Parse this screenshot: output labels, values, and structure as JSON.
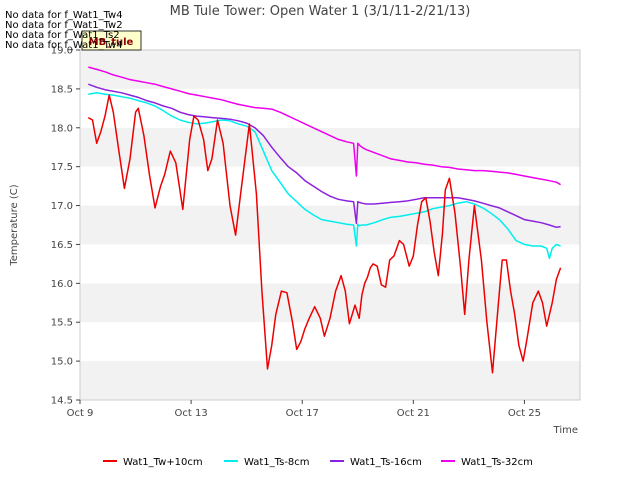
{
  "chart_data": {
    "type": "line",
    "title": "MB Tule Tower: Open Water 1 (3/1/11-2/21/13)",
    "xlabel": "Time",
    "ylabel": "Temperature (C)",
    "xlim": [
      9,
      27
    ],
    "ylim": [
      14.5,
      19.0
    ],
    "x_ticks": [
      9,
      13,
      17,
      21,
      25
    ],
    "x_tick_labels": [
      "Oct 9",
      "Oct 13",
      "Oct 17",
      "Oct 21",
      "Oct 25"
    ],
    "y_ticks": [
      14.5,
      15.0,
      15.5,
      16.0,
      16.5,
      17.0,
      17.5,
      18.0,
      18.5,
      19.0
    ],
    "y_tick_labels": [
      "14.5",
      "15.0",
      "15.5",
      "16.0",
      "16.5",
      "17.0",
      "17.5",
      "18.0",
      "18.5",
      "19.0"
    ],
    "grid": "horizontal bands",
    "legend_position": "bottom",
    "no_data_messages": [
      "No data for f_Wat1_Tw4",
      "No data for f_Wat1_Tw2",
      "No data for f_Wat1_Ts2",
      "No data for f_Wat1_Tw4"
    ],
    "badge_label": "MB_tule",
    "series": [
      {
        "name": "Wat1_Tw+10cm",
        "color": "#ee0000",
        "x": [
          9.3,
          9.45,
          9.6,
          9.75,
          9.9,
          10.05,
          10.2,
          10.4,
          10.6,
          10.8,
          11.0,
          11.1,
          11.3,
          11.5,
          11.7,
          11.9,
          12.05,
          12.25,
          12.45,
          12.7,
          12.95,
          13.1,
          13.25,
          13.45,
          13.6,
          13.75,
          13.95,
          14.15,
          14.4,
          14.6,
          14.8,
          15.1,
          15.35,
          15.55,
          15.75,
          15.9,
          16.05,
          16.25,
          16.45,
          16.65,
          16.8,
          16.95,
          17.1,
          17.25,
          17.45,
          17.65,
          17.8,
          18.0,
          18.2,
          18.4,
          18.55,
          18.7,
          18.9,
          19.05,
          19.15,
          19.25,
          19.35,
          19.45,
          19.55,
          19.7,
          19.85,
          20.0,
          20.15,
          20.3,
          20.5,
          20.65,
          20.85,
          21.0,
          21.15,
          21.3,
          21.45,
          21.6,
          21.75,
          21.9,
          22.05,
          22.15,
          22.3,
          22.5,
          22.7,
          22.85,
          23.0,
          23.2,
          23.45,
          23.65,
          23.85,
          24.05,
          24.2,
          24.35,
          24.5,
          24.65,
          24.8,
          24.95,
          25.1,
          25.3,
          25.5,
          25.65,
          25.8,
          26.0,
          26.15,
          26.3
        ],
        "y": [
          18.13,
          18.1,
          17.8,
          17.95,
          18.15,
          18.42,
          18.2,
          17.7,
          17.22,
          17.6,
          18.2,
          18.25,
          17.9,
          17.4,
          16.97,
          17.25,
          17.4,
          17.7,
          17.55,
          16.95,
          17.85,
          18.15,
          18.1,
          17.85,
          17.45,
          17.6,
          18.1,
          17.8,
          17.0,
          16.62,
          17.2,
          18.05,
          17.15,
          15.9,
          14.9,
          15.2,
          15.6,
          15.9,
          15.88,
          15.5,
          15.15,
          15.25,
          15.42,
          15.55,
          15.7,
          15.55,
          15.32,
          15.55,
          15.9,
          16.1,
          15.9,
          15.48,
          15.72,
          15.55,
          15.85,
          16.0,
          16.08,
          16.2,
          16.25,
          16.22,
          15.98,
          15.95,
          16.3,
          16.35,
          16.55,
          16.5,
          16.22,
          16.35,
          16.75,
          17.05,
          17.1,
          16.8,
          16.4,
          16.1,
          16.65,
          17.2,
          17.35,
          16.9,
          16.2,
          15.6,
          16.3,
          17.0,
          16.3,
          15.5,
          14.85,
          15.7,
          16.3,
          16.3,
          15.9,
          15.6,
          15.2,
          15.0,
          15.3,
          15.75,
          15.9,
          15.75,
          15.45,
          15.75,
          16.05,
          16.2
        ]
      },
      {
        "name": "Wat1_Ts-8cm",
        "color": "#00eeee",
        "x": [
          9.3,
          9.6,
          9.9,
          10.2,
          10.5,
          10.8,
          11.1,
          11.4,
          11.7,
          12.0,
          12.3,
          12.6,
          12.9,
          13.2,
          13.5,
          13.8,
          14.1,
          14.4,
          14.7,
          15.0,
          15.3,
          15.6,
          15.9,
          16.2,
          16.5,
          16.8,
          17.1,
          17.4,
          17.7,
          18.0,
          18.3,
          18.6,
          18.85,
          18.95,
          19.0,
          19.05,
          19.15,
          19.3,
          19.6,
          19.9,
          20.2,
          20.5,
          20.8,
          21.1,
          21.4,
          21.7,
          22.0,
          22.3,
          22.6,
          22.9,
          23.2,
          23.5,
          23.8,
          24.1,
          24.4,
          24.7,
          25.0,
          25.3,
          25.6,
          25.8,
          25.9,
          26.0,
          26.15,
          26.3
        ],
        "y": [
          18.43,
          18.45,
          18.43,
          18.42,
          18.4,
          18.38,
          18.35,
          18.32,
          18.28,
          18.22,
          18.15,
          18.1,
          18.07,
          18.05,
          18.06,
          18.08,
          18.1,
          18.09,
          18.05,
          18.02,
          17.95,
          17.7,
          17.45,
          17.3,
          17.15,
          17.05,
          16.95,
          16.88,
          16.82,
          16.8,
          16.78,
          16.76,
          16.75,
          16.48,
          16.76,
          16.74,
          16.75,
          16.75,
          16.78,
          16.82,
          16.85,
          16.86,
          16.88,
          16.9,
          16.92,
          16.96,
          16.98,
          17.0,
          17.03,
          17.05,
          17.02,
          16.97,
          16.9,
          16.82,
          16.7,
          16.55,
          16.5,
          16.48,
          16.48,
          16.45,
          16.32,
          16.45,
          16.5,
          16.48
        ]
      },
      {
        "name": "Wat1_Ts-16cm",
        "color": "#8b22dd",
        "x": [
          9.3,
          9.6,
          9.9,
          10.2,
          10.5,
          10.8,
          11.1,
          11.4,
          11.7,
          12.0,
          12.3,
          12.6,
          12.9,
          13.2,
          13.5,
          13.8,
          14.1,
          14.4,
          14.7,
          15.0,
          15.3,
          15.6,
          15.9,
          16.2,
          16.5,
          16.8,
          17.1,
          17.4,
          17.7,
          18.0,
          18.3,
          18.6,
          18.85,
          18.95,
          19.0,
          19.05,
          19.15,
          19.3,
          19.6,
          19.9,
          20.2,
          20.5,
          20.8,
          21.1,
          21.4,
          21.7,
          22.0,
          22.3,
          22.6,
          22.9,
          23.2,
          23.5,
          23.8,
          24.1,
          24.4,
          24.7,
          25.0,
          25.3,
          25.6,
          25.9,
          26.15,
          26.3
        ],
        "y": [
          18.56,
          18.52,
          18.49,
          18.47,
          18.45,
          18.42,
          18.39,
          18.35,
          18.32,
          18.28,
          18.25,
          18.2,
          18.17,
          18.15,
          18.14,
          18.13,
          18.12,
          18.11,
          18.09,
          18.06,
          18.0,
          17.9,
          17.75,
          17.62,
          17.5,
          17.42,
          17.32,
          17.25,
          17.18,
          17.12,
          17.08,
          17.06,
          17.05,
          16.77,
          17.05,
          17.04,
          17.03,
          17.02,
          17.02,
          17.03,
          17.04,
          17.05,
          17.06,
          17.08,
          17.1,
          17.1,
          17.1,
          17.1,
          17.1,
          17.08,
          17.06,
          17.03,
          17.0,
          16.97,
          16.92,
          16.87,
          16.82,
          16.8,
          16.78,
          16.75,
          16.72,
          16.73
        ]
      },
      {
        "name": "Wat1_Ts-32cm",
        "color": "#ee00ee",
        "x": [
          9.3,
          9.6,
          9.9,
          10.2,
          10.5,
          10.8,
          11.1,
          11.4,
          11.7,
          12.0,
          12.3,
          12.6,
          12.9,
          13.2,
          13.5,
          13.8,
          14.1,
          14.4,
          14.7,
          15.0,
          15.3,
          15.6,
          15.9,
          16.2,
          16.5,
          16.8,
          17.1,
          17.4,
          17.7,
          18.0,
          18.3,
          18.6,
          18.85,
          18.95,
          19.0,
          19.05,
          19.15,
          19.3,
          19.6,
          19.9,
          20.2,
          20.5,
          20.8,
          21.1,
          21.4,
          21.7,
          22.0,
          22.3,
          22.6,
          22.9,
          23.2,
          23.5,
          23.8,
          24.1,
          24.4,
          24.7,
          25.0,
          25.3,
          25.6,
          25.9,
          26.15,
          26.3
        ],
        "y": [
          18.78,
          18.75,
          18.72,
          18.68,
          18.65,
          18.62,
          18.6,
          18.58,
          18.56,
          18.53,
          18.5,
          18.47,
          18.44,
          18.42,
          18.4,
          18.38,
          18.36,
          18.33,
          18.3,
          18.28,
          18.26,
          18.25,
          18.24,
          18.2,
          18.15,
          18.1,
          18.05,
          18.0,
          17.95,
          17.9,
          17.85,
          17.82,
          17.8,
          17.38,
          17.8,
          17.78,
          17.75,
          17.72,
          17.68,
          17.64,
          17.6,
          17.58,
          17.56,
          17.55,
          17.53,
          17.52,
          17.5,
          17.49,
          17.47,
          17.46,
          17.45,
          17.45,
          17.44,
          17.43,
          17.42,
          17.4,
          17.38,
          17.36,
          17.34,
          17.32,
          17.3,
          17.27
        ]
      }
    ]
  }
}
